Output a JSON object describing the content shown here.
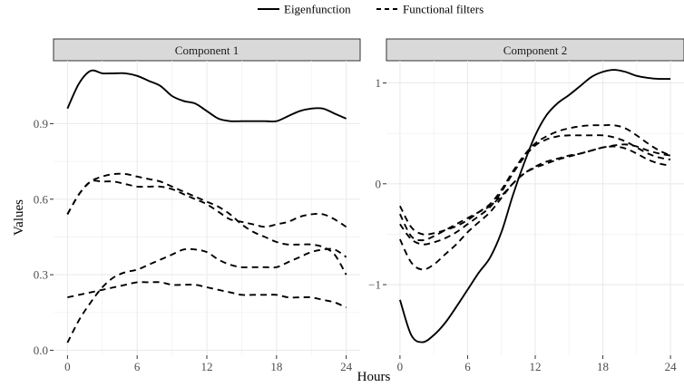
{
  "chart_data": {
    "type": "line",
    "legend": {
      "position": "top",
      "entries": [
        {
          "label": "Eigenfunction",
          "linetype": "solid"
        },
        {
          "label": "Functional filters",
          "linetype": "dashed"
        }
      ]
    },
    "xlabel": "Hours",
    "ylabel": "Values",
    "line_color": "#000000",
    "grid": true,
    "facets": [
      {
        "title": "Component 1",
        "xlim": [
          -1.2,
          25.2
        ],
        "ylim": [
          -0.02,
          1.15
        ],
        "xticks": [
          "0",
          "6",
          "12",
          "18",
          "24"
        ],
        "xtick_values": [
          0,
          6,
          12,
          18,
          24
        ],
        "yticks": [
          "0.0",
          "0.3",
          "0.6",
          "0.9"
        ],
        "ytick_values": [
          0,
          0.3,
          0.6,
          0.9
        ],
        "series": [
          {
            "role": "eigenfunction",
            "linetype": "solid",
            "x": [
              0,
              1,
              2,
              3,
              4,
              5,
              6,
              7,
              8,
              9,
              10,
              11,
              12,
              13,
              14,
              15,
              16,
              17,
              18,
              19,
              20,
              21,
              22,
              23,
              24
            ],
            "y": [
              0.96,
              1.06,
              1.11,
              1.1,
              1.1,
              1.1,
              1.09,
              1.07,
              1.05,
              1.01,
              0.99,
              0.98,
              0.95,
              0.92,
              0.91,
              0.91,
              0.91,
              0.91,
              0.91,
              0.93,
              0.95,
              0.96,
              0.96,
              0.94,
              0.92
            ]
          },
          {
            "role": "filter",
            "linetype": "dashed",
            "x": [
              0,
              1,
              2,
              3,
              4,
              5,
              6,
              7,
              8,
              9,
              10,
              11,
              12,
              13,
              14,
              15,
              16,
              17,
              18,
              19,
              20,
              21,
              22,
              23,
              24
            ],
            "y": [
              0.54,
              0.62,
              0.67,
              0.69,
              0.7,
              0.7,
              0.69,
              0.68,
              0.67,
              0.65,
              0.63,
              0.61,
              0.59,
              0.57,
              0.54,
              0.5,
              0.47,
              0.45,
              0.43,
              0.42,
              0.42,
              0.42,
              0.41,
              0.38,
              0.3
            ]
          },
          {
            "role": "filter",
            "linetype": "dashed",
            "x": [
              0,
              1,
              2,
              3,
              4,
              5,
              6,
              7,
              8,
              9,
              10,
              11,
              12,
              13,
              14,
              15,
              16,
              17,
              18,
              19,
              20,
              21,
              22,
              23,
              24
            ],
            "y": [
              0.54,
              0.62,
              0.67,
              0.67,
              0.67,
              0.66,
              0.65,
              0.65,
              0.65,
              0.64,
              0.62,
              0.6,
              0.58,
              0.55,
              0.52,
              0.51,
              0.5,
              0.49,
              0.5,
              0.51,
              0.53,
              0.54,
              0.54,
              0.52,
              0.49
            ]
          },
          {
            "role": "filter",
            "linetype": "dashed",
            "x": [
              0,
              1,
              2,
              3,
              4,
              5,
              6,
              7,
              8,
              9,
              10,
              11,
              12,
              13,
              14,
              15,
              16,
              17,
              18,
              19,
              20,
              21,
              22,
              23,
              24
            ],
            "y": [
              0.03,
              0.12,
              0.19,
              0.25,
              0.29,
              0.31,
              0.32,
              0.34,
              0.36,
              0.38,
              0.4,
              0.4,
              0.39,
              0.36,
              0.34,
              0.33,
              0.33,
              0.33,
              0.33,
              0.35,
              0.37,
              0.39,
              0.4,
              0.4,
              0.37
            ]
          },
          {
            "role": "filter",
            "linetype": "dashed",
            "x": [
              0,
              1,
              2,
              3,
              4,
              5,
              6,
              7,
              8,
              9,
              10,
              11,
              12,
              13,
              14,
              15,
              16,
              17,
              18,
              19,
              20,
              21,
              22,
              23,
              24
            ],
            "y": [
              0.21,
              0.22,
              0.23,
              0.24,
              0.25,
              0.26,
              0.27,
              0.27,
              0.27,
              0.26,
              0.26,
              0.26,
              0.25,
              0.24,
              0.23,
              0.22,
              0.22,
              0.22,
              0.22,
              0.21,
              0.21,
              0.21,
              0.2,
              0.19,
              0.17
            ]
          }
        ]
      },
      {
        "title": "Component 2",
        "xlim": [
          -1.2,
          25.2
        ],
        "ylim": [
          -1.7,
          1.22
        ],
        "xticks": [
          "0",
          "6",
          "12",
          "18",
          "24"
        ],
        "xtick_values": [
          0,
          6,
          12,
          18,
          24
        ],
        "yticks": [
          "−1",
          "0",
          "1"
        ],
        "ytick_values": [
          -1,
          0,
          1
        ],
        "series": [
          {
            "role": "eigenfunction",
            "linetype": "solid",
            "x": [
              0,
              1,
              2,
              3,
              4,
              5,
              6,
              7,
              8,
              9,
              10,
              11,
              12,
              13,
              14,
              15,
              16,
              17,
              18,
              19,
              20,
              21,
              22,
              23,
              24
            ],
            "y": [
              -1.15,
              -1.5,
              -1.57,
              -1.5,
              -1.38,
              -1.22,
              -1.05,
              -0.88,
              -0.73,
              -0.48,
              -0.12,
              0.2,
              0.48,
              0.68,
              0.8,
              0.88,
              0.97,
              1.06,
              1.11,
              1.13,
              1.11,
              1.07,
              1.05,
              1.04,
              1.04
            ]
          },
          {
            "role": "filter",
            "linetype": "dashed",
            "x": [
              0,
              1,
              2,
              3,
              4,
              5,
              6,
              7,
              8,
              9,
              10,
              11,
              12,
              13,
              14,
              15,
              16,
              17,
              18,
              19,
              20,
              21,
              22,
              23,
              24
            ],
            "y": [
              -0.22,
              -0.43,
              -0.5,
              -0.49,
              -0.46,
              -0.42,
              -0.36,
              -0.28,
              -0.2,
              -0.06,
              0.12,
              0.28,
              0.4,
              0.47,
              0.52,
              0.55,
              0.57,
              0.58,
              0.58,
              0.58,
              0.55,
              0.48,
              0.4,
              0.33,
              0.28
            ]
          },
          {
            "role": "filter",
            "linetype": "dashed",
            "x": [
              0,
              1,
              2,
              3,
              4,
              5,
              6,
              7,
              8,
              9,
              10,
              11,
              12,
              13,
              14,
              15,
              16,
              17,
              18,
              19,
              20,
              21,
              22,
              23,
              24
            ],
            "y": [
              -0.4,
              -0.55,
              -0.6,
              -0.58,
              -0.54,
              -0.48,
              -0.4,
              -0.32,
              -0.23,
              -0.08,
              0.1,
              0.26,
              0.38,
              0.44,
              0.47,
              0.48,
              0.48,
              0.48,
              0.48,
              0.46,
              0.42,
              0.36,
              0.3,
              0.26,
              0.24
            ]
          },
          {
            "role": "filter",
            "linetype": "dashed",
            "x": [
              0,
              1,
              2,
              3,
              4,
              5,
              6,
              7,
              8,
              9,
              10,
              11,
              12,
              13,
              14,
              15,
              16,
              17,
              18,
              19,
              20,
              21,
              22,
              23,
              24
            ],
            "y": [
              -0.55,
              -0.78,
              -0.85,
              -0.8,
              -0.7,
              -0.6,
              -0.48,
              -0.38,
              -0.28,
              -0.14,
              0.0,
              0.1,
              0.16,
              0.2,
              0.24,
              0.27,
              0.3,
              0.33,
              0.36,
              0.38,
              0.39,
              0.37,
              0.33,
              0.3,
              0.28
            ]
          },
          {
            "role": "filter",
            "linetype": "dashed",
            "x": [
              0,
              1,
              2,
              3,
              4,
              5,
              6,
              7,
              8,
              9,
              10,
              11,
              12,
              13,
              14,
              15,
              16,
              17,
              18,
              19,
              20,
              21,
              22,
              23,
              24
            ],
            "y": [
              -0.3,
              -0.52,
              -0.56,
              -0.52,
              -0.46,
              -0.4,
              -0.34,
              -0.28,
              -0.22,
              -0.12,
              0.0,
              0.1,
              0.17,
              0.22,
              0.25,
              0.28,
              0.3,
              0.33,
              0.36,
              0.37,
              0.35,
              0.3,
              0.24,
              0.2,
              0.18
            ]
          }
        ]
      }
    ]
  }
}
